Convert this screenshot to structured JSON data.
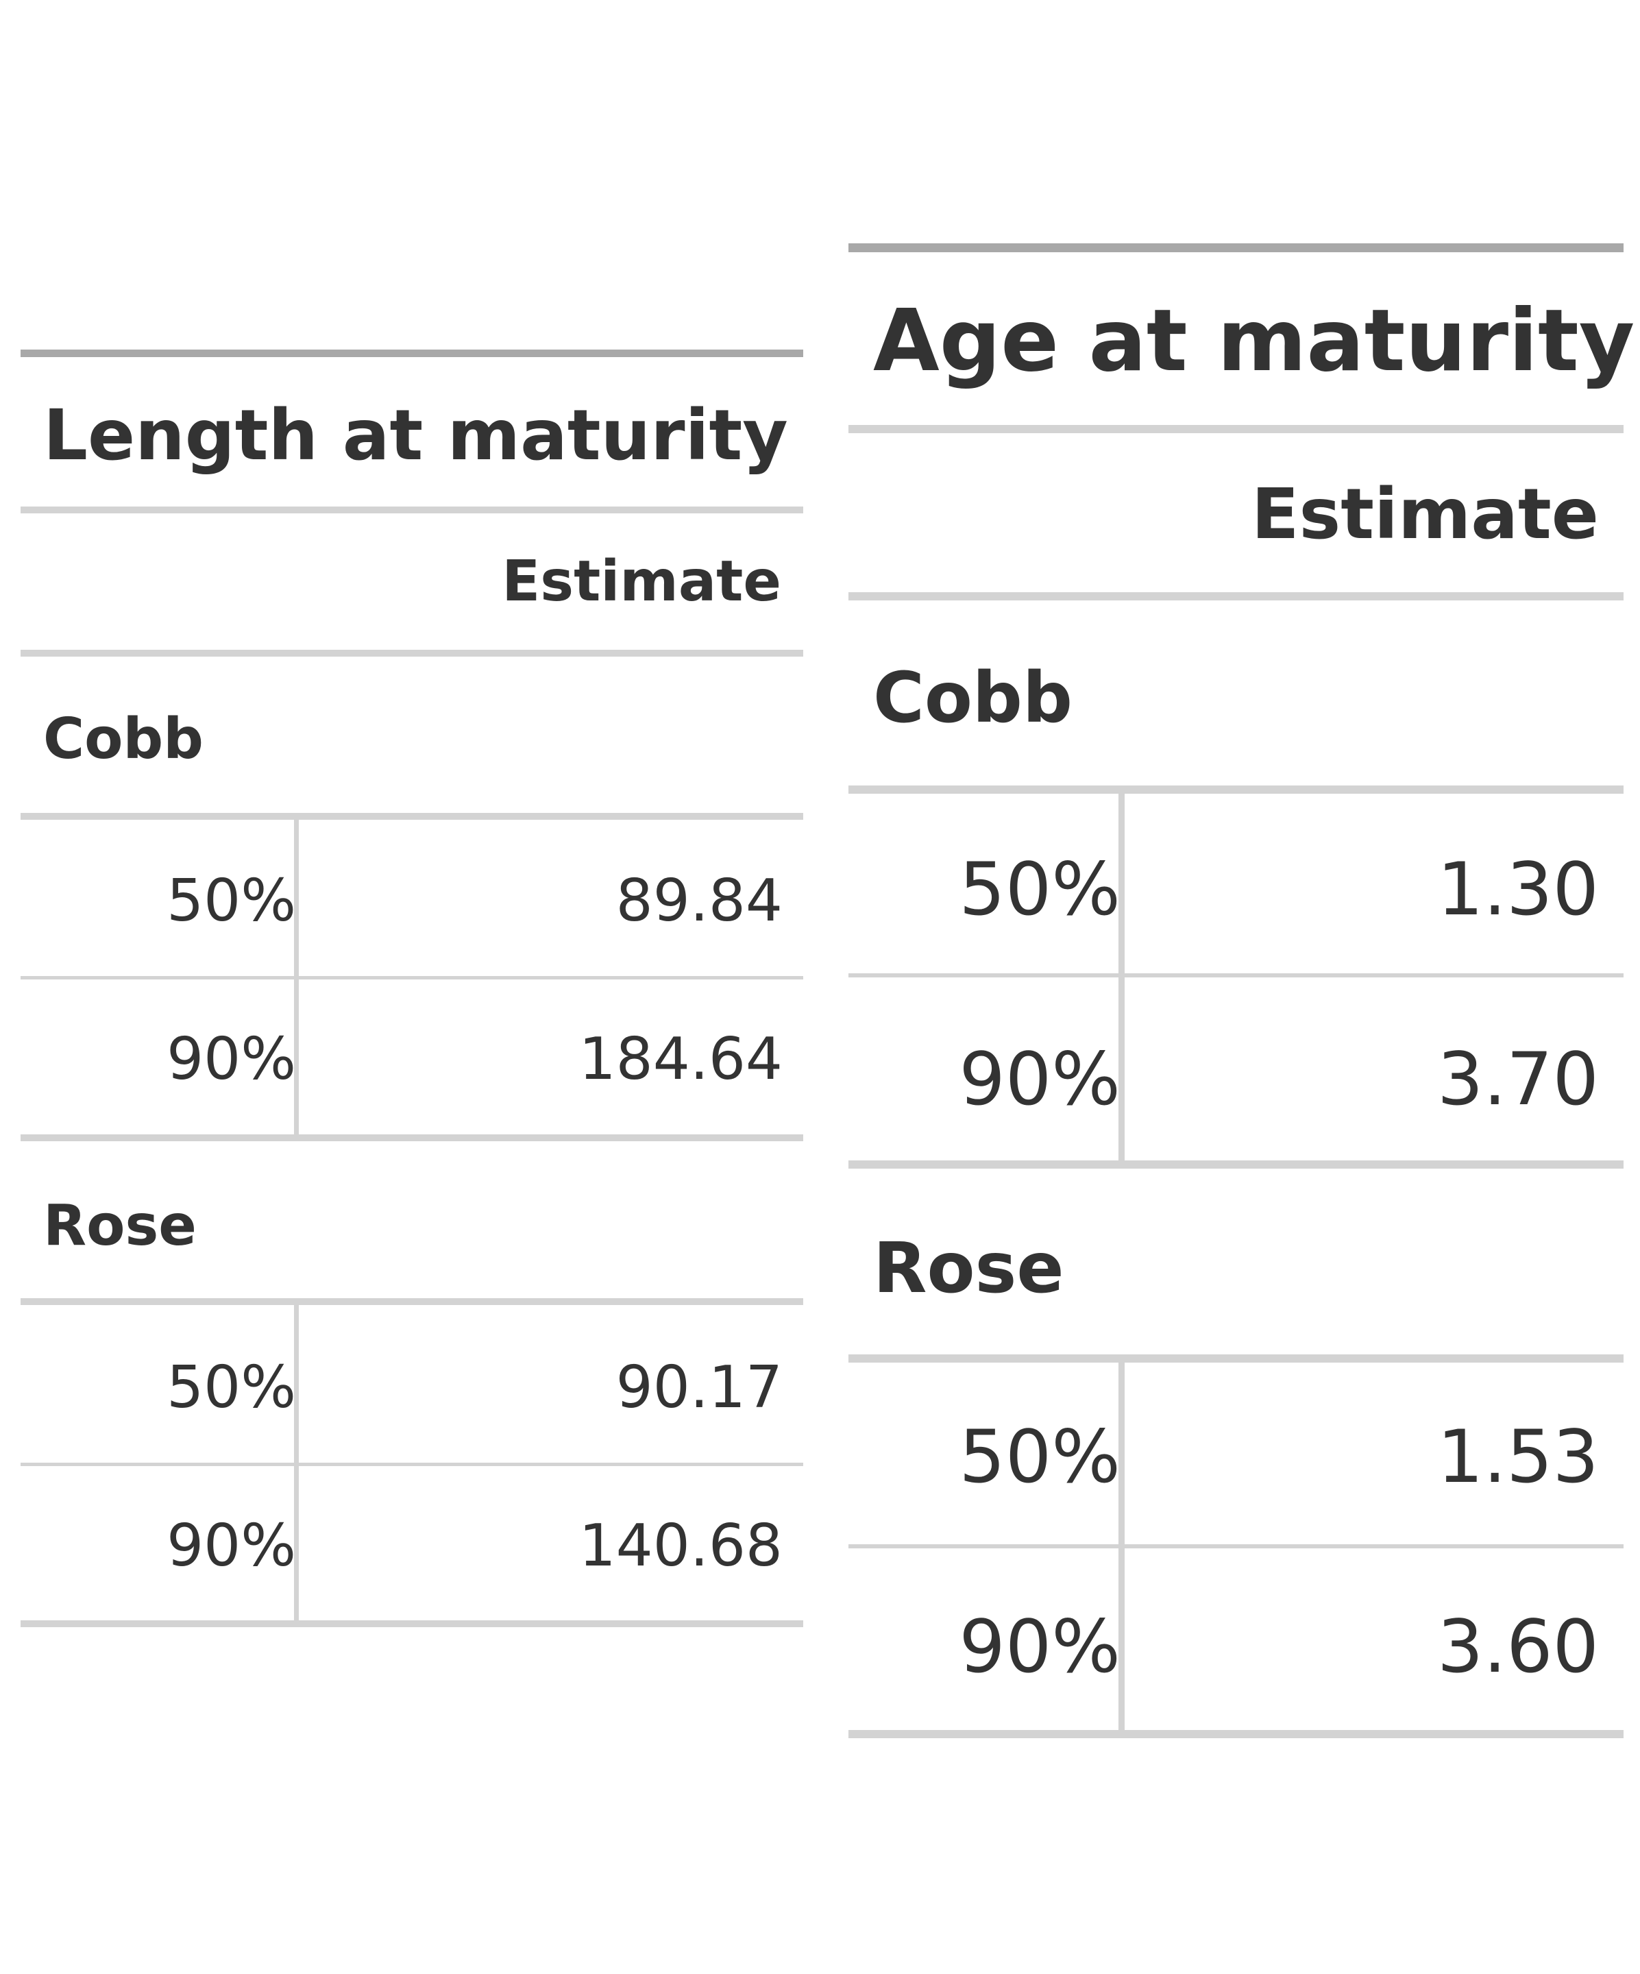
{
  "tables": [
    {
      "title": "Length at maturity",
      "column_header": "Estimate",
      "groups": [
        {
          "name": "Cobb",
          "rows": [
            {
              "label": "50%",
              "value": "89.84"
            },
            {
              "label": "90%",
              "value": "184.64"
            }
          ]
        },
        {
          "name": "Rose",
          "rows": [
            {
              "label": "50%",
              "value": "90.17"
            },
            {
              "label": "90%",
              "value": "140.68"
            }
          ]
        }
      ]
    },
    {
      "title": "Age at maturity",
      "column_header": "Estimate",
      "groups": [
        {
          "name": "Cobb",
          "rows": [
            {
              "label": "50%",
              "value": "1.30"
            },
            {
              "label": "90%",
              "value": "3.70"
            }
          ]
        },
        {
          "name": "Rose",
          "rows": [
            {
              "label": "50%",
              "value": "1.53"
            },
            {
              "label": "90%",
              "value": "3.60"
            }
          ]
        }
      ]
    }
  ]
}
